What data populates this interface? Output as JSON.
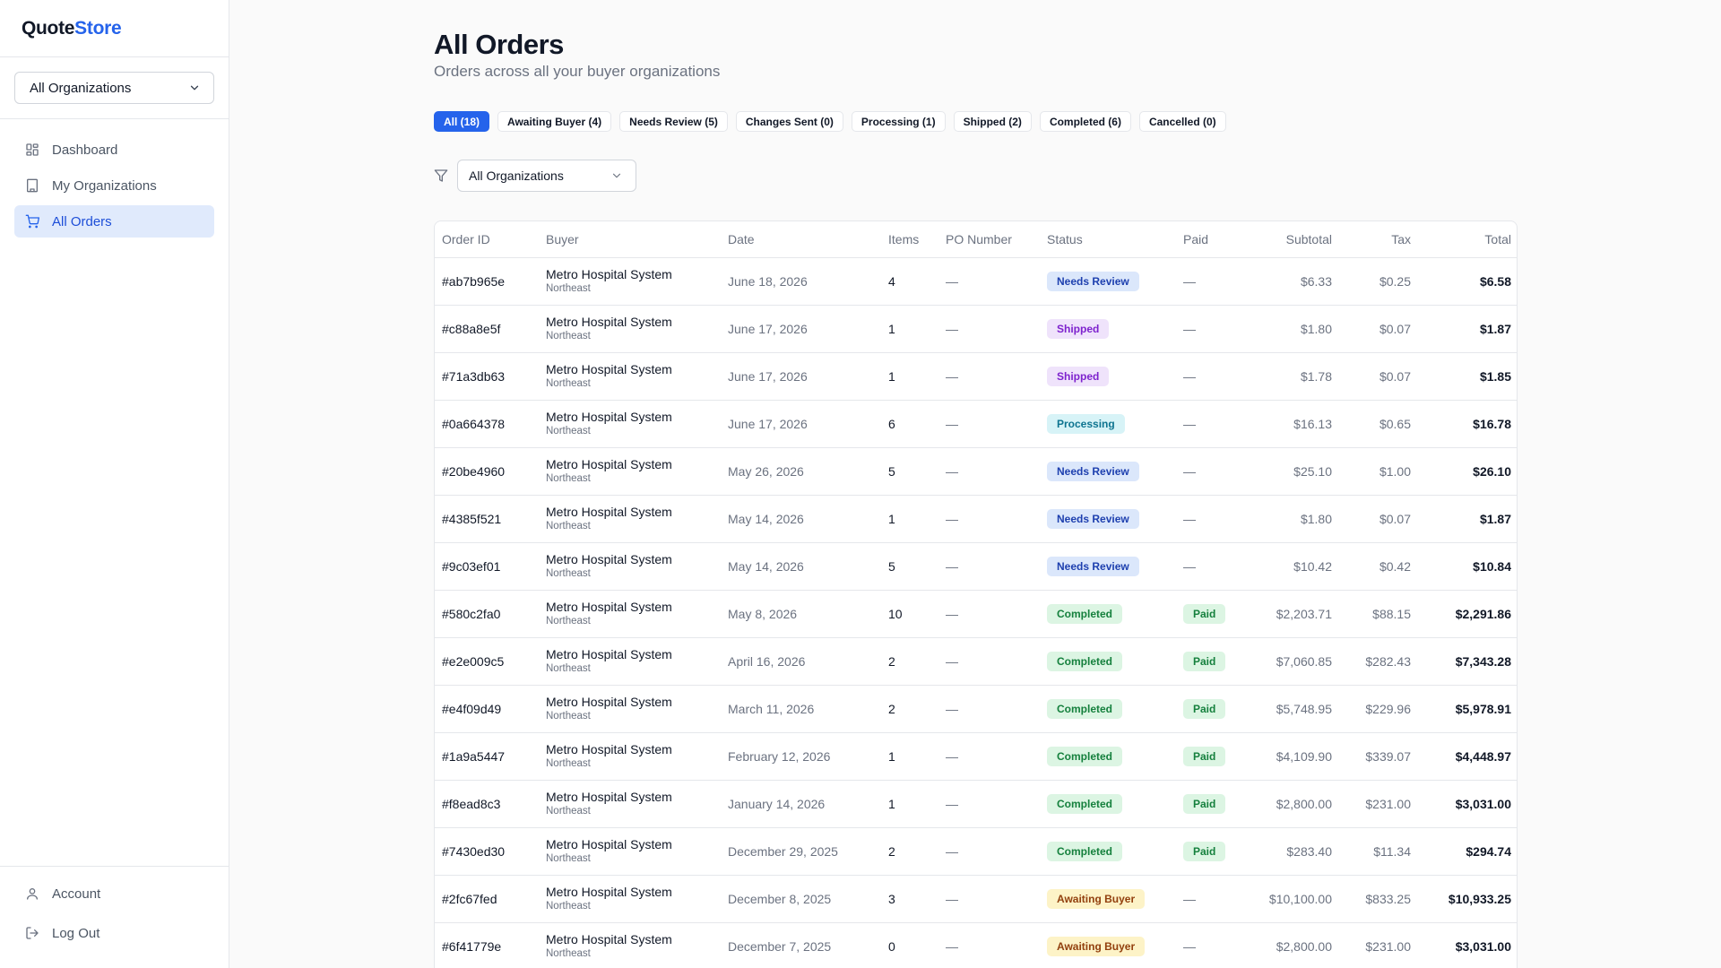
{
  "app": {
    "logo_main": "Quote",
    "logo_accent": "Store",
    "accent_color": "#2563eb"
  },
  "sidebar": {
    "org_select": "All Organizations",
    "nav": [
      {
        "label": "Dashboard",
        "icon": "dashboard-icon"
      },
      {
        "label": "My Organizations",
        "icon": "building-icon"
      },
      {
        "label": "All Orders",
        "icon": "cart-icon",
        "active": true
      }
    ],
    "bottom": [
      {
        "label": "Account",
        "icon": "user-icon"
      },
      {
        "label": "Log Out",
        "icon": "logout-icon"
      }
    ]
  },
  "page": {
    "title": "All Orders",
    "subtitle": "Orders across all your buyer organizations"
  },
  "tabs": [
    {
      "label": "All (18)",
      "active": true
    },
    {
      "label": "Awaiting Buyer (4)"
    },
    {
      "label": "Needs Review (5)"
    },
    {
      "label": "Changes Sent (0)"
    },
    {
      "label": "Processing (1)"
    },
    {
      "label": "Shipped (2)"
    },
    {
      "label": "Completed (6)"
    },
    {
      "label": "Cancelled (0)"
    }
  ],
  "filter": {
    "icon": "filter-icon",
    "value": "All Organizations"
  },
  "table": {
    "columns": [
      "Order ID",
      "Buyer",
      "Date",
      "Items",
      "PO Number",
      "Status",
      "Paid",
      "Subtotal",
      "Tax",
      "Total"
    ],
    "rows": [
      {
        "id": "#ab7b965e",
        "buyer": "Metro Hospital System",
        "region": "Northeast",
        "date": "June 18, 2026",
        "items": "4",
        "po": "—",
        "status": "Needs Review",
        "paid": "—",
        "subtotal": "$6.33",
        "tax": "$0.25",
        "total": "$6.58"
      },
      {
        "id": "#c88a8e5f",
        "buyer": "Metro Hospital System",
        "region": "Northeast",
        "date": "June 17, 2026",
        "items": "1",
        "po": "—",
        "status": "Shipped",
        "paid": "—",
        "subtotal": "$1.80",
        "tax": "$0.07",
        "total": "$1.87"
      },
      {
        "id": "#71a3db63",
        "buyer": "Metro Hospital System",
        "region": "Northeast",
        "date": "June 17, 2026",
        "items": "1",
        "po": "—",
        "status": "Shipped",
        "paid": "—",
        "subtotal": "$1.78",
        "tax": "$0.07",
        "total": "$1.85"
      },
      {
        "id": "#0a664378",
        "buyer": "Metro Hospital System",
        "region": "Northeast",
        "date": "June 17, 2026",
        "items": "6",
        "po": "—",
        "status": "Processing",
        "paid": "—",
        "subtotal": "$16.13",
        "tax": "$0.65",
        "total": "$16.78"
      },
      {
        "id": "#20be4960",
        "buyer": "Metro Hospital System",
        "region": "Northeast",
        "date": "May 26, 2026",
        "items": "5",
        "po": "—",
        "status": "Needs Review",
        "paid": "—",
        "subtotal": "$25.10",
        "tax": "$1.00",
        "total": "$26.10"
      },
      {
        "id": "#4385f521",
        "buyer": "Metro Hospital System",
        "region": "Northeast",
        "date": "May 14, 2026",
        "items": "1",
        "po": "—",
        "status": "Needs Review",
        "paid": "—",
        "subtotal": "$1.80",
        "tax": "$0.07",
        "total": "$1.87"
      },
      {
        "id": "#9c03ef01",
        "buyer": "Metro Hospital System",
        "region": "Northeast",
        "date": "May 14, 2026",
        "items": "5",
        "po": "—",
        "status": "Needs Review",
        "paid": "—",
        "subtotal": "$10.42",
        "tax": "$0.42",
        "total": "$10.84"
      },
      {
        "id": "#580c2fa0",
        "buyer": "Metro Hospital System",
        "region": "Northeast",
        "date": "May 8, 2026",
        "items": "10",
        "po": "—",
        "status": "Completed",
        "paid": "Paid",
        "subtotal": "$2,203.71",
        "tax": "$88.15",
        "total": "$2,291.86"
      },
      {
        "id": "#e2e009c5",
        "buyer": "Metro Hospital System",
        "region": "Northeast",
        "date": "April 16, 2026",
        "items": "2",
        "po": "—",
        "status": "Completed",
        "paid": "Paid",
        "subtotal": "$7,060.85",
        "tax": "$282.43",
        "total": "$7,343.28"
      },
      {
        "id": "#e4f09d49",
        "buyer": "Metro Hospital System",
        "region": "Northeast",
        "date": "March 11, 2026",
        "items": "2",
        "po": "—",
        "status": "Completed",
        "paid": "Paid",
        "subtotal": "$5,748.95",
        "tax": "$229.96",
        "total": "$5,978.91"
      },
      {
        "id": "#1a9a5447",
        "buyer": "Metro Hospital System",
        "region": "Northeast",
        "date": "February 12, 2026",
        "items": "1",
        "po": "—",
        "status": "Completed",
        "paid": "Paid",
        "subtotal": "$4,109.90",
        "tax": "$339.07",
        "total": "$4,448.97"
      },
      {
        "id": "#f8ead8c3",
        "buyer": "Metro Hospital System",
        "region": "Northeast",
        "date": "January 14, 2026",
        "items": "1",
        "po": "—",
        "status": "Completed",
        "paid": "Paid",
        "subtotal": "$2,800.00",
        "tax": "$231.00",
        "total": "$3,031.00"
      },
      {
        "id": "#7430ed30",
        "buyer": "Metro Hospital System",
        "region": "Northeast",
        "date": "December 29, 2025",
        "items": "2",
        "po": "—",
        "status": "Completed",
        "paid": "Paid",
        "subtotal": "$283.40",
        "tax": "$11.34",
        "total": "$294.74"
      },
      {
        "id": "#2fc67fed",
        "buyer": "Metro Hospital System",
        "region": "Northeast",
        "date": "December 8, 2025",
        "items": "3",
        "po": "—",
        "status": "Awaiting Buyer",
        "paid": "—",
        "subtotal": "$10,100.00",
        "tax": "$833.25",
        "total": "$10,933.25"
      },
      {
        "id": "#6f41779e",
        "buyer": "Metro Hospital System",
        "region": "Northeast",
        "date": "December 7, 2025",
        "items": "0",
        "po": "—",
        "status": "Awaiting Buyer",
        "paid": "—",
        "subtotal": "$2,800.00",
        "tax": "$231.00",
        "total": "$3,031.00"
      }
    ]
  }
}
